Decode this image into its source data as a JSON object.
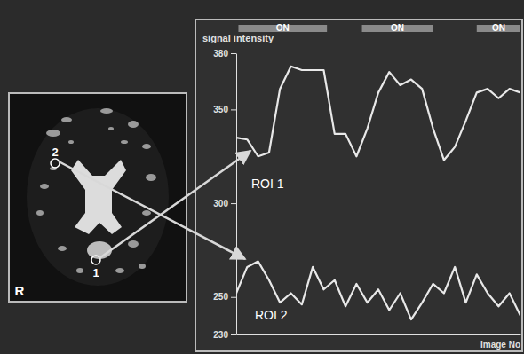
{
  "chart_data": {
    "type": "line",
    "ylabel": "signal intensity",
    "xlabel": "image No",
    "x": [
      1,
      2,
      3,
      4,
      5,
      6,
      7,
      8,
      9,
      10,
      11,
      12,
      13,
      14,
      15,
      16,
      17,
      18,
      19,
      20,
      21,
      22,
      23,
      24,
      25,
      26,
      27
    ],
    "series": [
      {
        "name": "ROI 1",
        "color": "#e8e8e8",
        "values": [
          335,
          334,
          325,
          327,
          361,
          373,
          371,
          371,
          371,
          337,
          337,
          325,
          340,
          359,
          370,
          363,
          366,
          361,
          340,
          323,
          330,
          344,
          359,
          361,
          356,
          361,
          359
        ]
      },
      {
        "name": "ROI 2",
        "color": "#e8e8e8",
        "values": [
          252,
          266,
          269,
          259,
          247,
          252,
          246,
          266,
          254,
          259,
          245,
          257,
          247,
          254,
          243,
          252,
          238,
          247,
          257,
          252,
          266,
          247,
          262,
          252,
          245,
          252,
          240
        ]
      }
    ],
    "xlim": [
      1,
      27
    ],
    "ylim": [
      230,
      380
    ],
    "yticks": [
      230,
      250,
      300,
      350,
      380
    ],
    "tick_labels": "y",
    "on_blocks": [
      {
        "label": "ON",
        "start": 1.2,
        "end": 9.3
      },
      {
        "label": "ON",
        "start": 12.5,
        "end": 19
      },
      {
        "label": "ON",
        "start": 23,
        "end": 27
      }
    ],
    "annotations": [
      {
        "text": "2"
      },
      {
        "text": "1"
      },
      {
        "text": "R"
      }
    ]
  }
}
